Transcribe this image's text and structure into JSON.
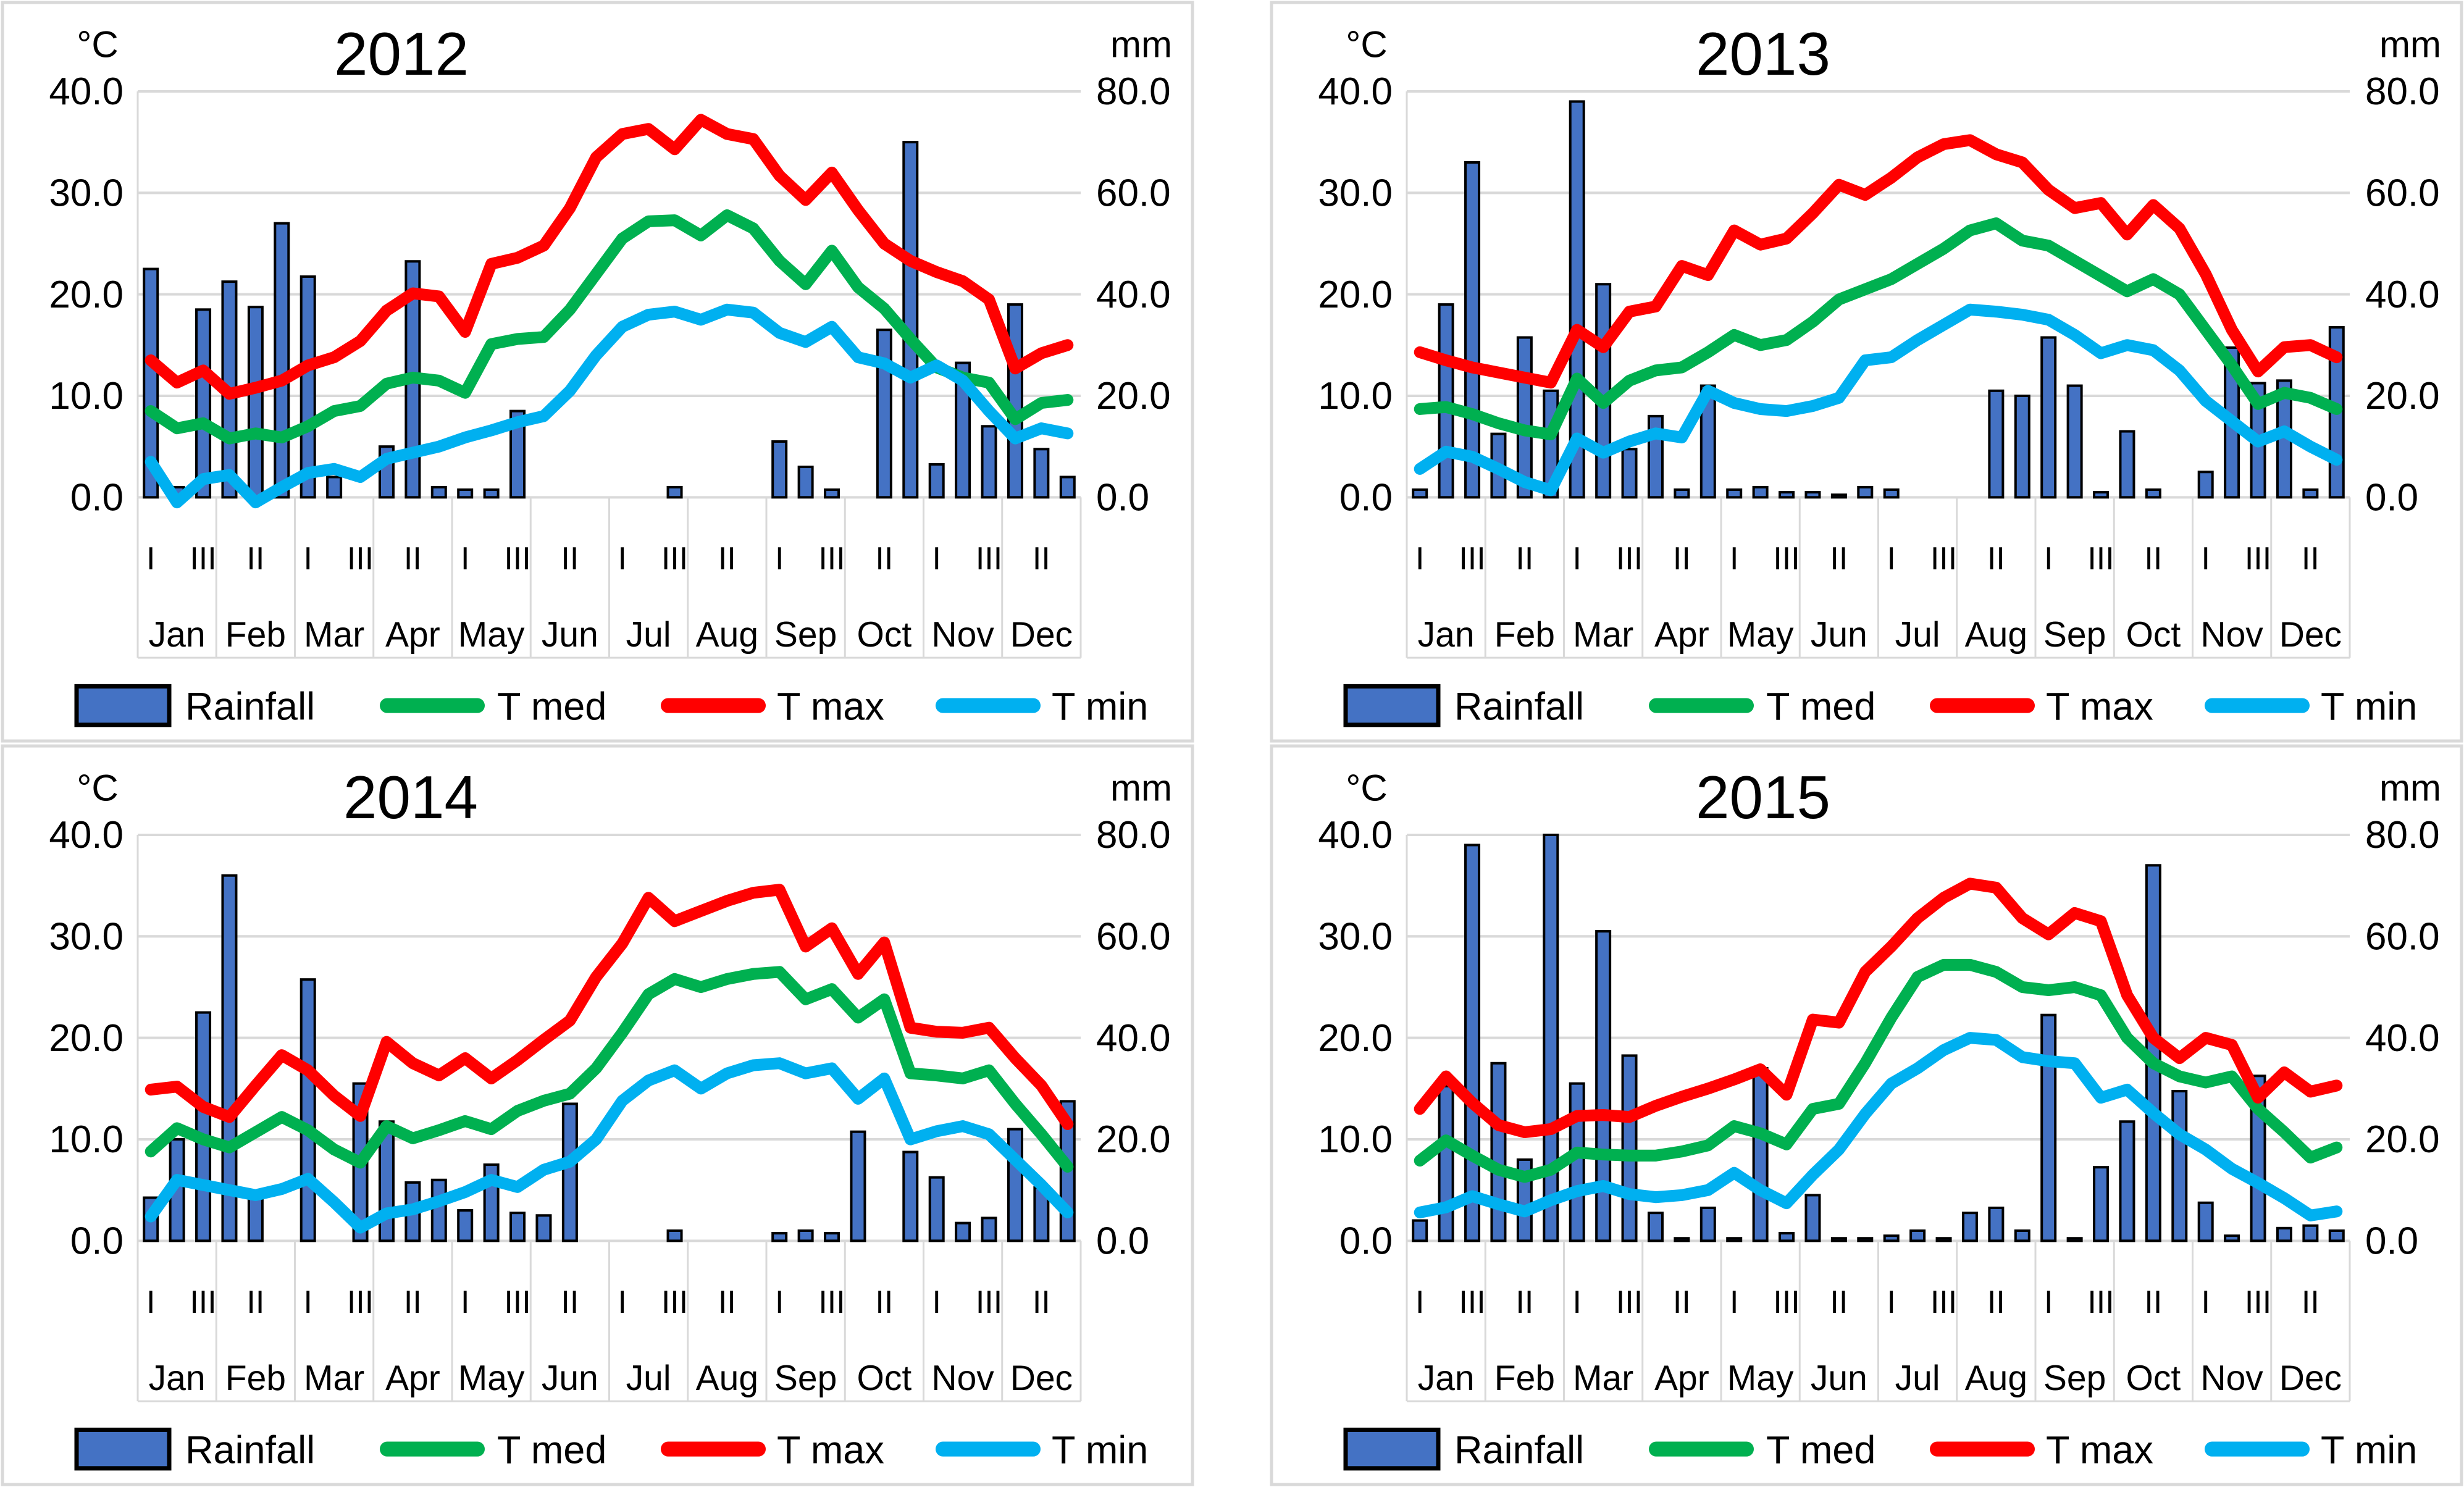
{
  "page": {
    "background": "#ffffff"
  },
  "colors": {
    "rainfall_fill": "#4472C4",
    "rainfall_border": "#000000",
    "t_med": "#00B050",
    "t_max": "#FF0000",
    "t_min": "#00B0F0",
    "gridline": "#D9D9D9",
    "panel_border": "#D9D9D9",
    "text": "#000000"
  },
  "axis": {
    "left_title": "°C",
    "right_title": "mm",
    "left_tick_labels": [
      "40.0",
      "30.0",
      "20.0",
      "10.0",
      "0.0"
    ],
    "left_tick_values": [
      40,
      30,
      20,
      10,
      0
    ],
    "right_tick_labels": [
      "80.0",
      "60.0",
      "40.0",
      "20.0",
      "0.0"
    ],
    "right_tick_values": [
      80,
      60,
      40,
      20,
      0
    ],
    "left_range": [
      0,
      40
    ],
    "right_range": [
      0,
      80
    ],
    "months": [
      "Jan",
      "Feb",
      "Mar",
      "Apr",
      "May",
      "Jun",
      "Jul",
      "Aug",
      "Sep",
      "Oct",
      "Nov",
      "Dec"
    ],
    "decades_per_month": 3,
    "decade_label_cycle": [
      "I",
      "III",
      "II"
    ],
    "grid": "on"
  },
  "legend": {
    "position": "bottom",
    "items": [
      {
        "key": "rainfall",
        "label": "Rainfall",
        "swatch": "bar"
      },
      {
        "key": "t_med",
        "label": "T med",
        "swatch": "line"
      },
      {
        "key": "t_max",
        "label": "T max",
        "swatch": "line"
      },
      {
        "key": "t_min",
        "label": "T min",
        "swatch": "line"
      }
    ]
  },
  "chart_data": [
    {
      "type": "bar",
      "subtype": "combo-bar-lines",
      "title": "2012",
      "xlabel": "",
      "ylabel_left": "°C",
      "ylabel_right": "mm",
      "ylim_left": [
        0,
        40
      ],
      "ylim_right": [
        0,
        80
      ],
      "categories": [
        "Jan-I",
        "Jan-II",
        "Jan-III",
        "Feb-I",
        "Feb-II",
        "Feb-III",
        "Mar-I",
        "Mar-II",
        "Mar-III",
        "Apr-I",
        "Apr-II",
        "Apr-III",
        "May-I",
        "May-II",
        "May-III",
        "Jun-I",
        "Jun-II",
        "Jun-III",
        "Jul-I",
        "Jul-II",
        "Jul-III",
        "Aug-I",
        "Aug-II",
        "Aug-III",
        "Sep-I",
        "Sep-II",
        "Sep-III",
        "Oct-I",
        "Oct-II",
        "Oct-III",
        "Nov-I",
        "Nov-II",
        "Nov-III",
        "Dec-I",
        "Dec-II",
        "Dec-III"
      ],
      "series": [
        {
          "name": "Rainfall",
          "type": "bar",
          "axis": "right",
          "unit": "mm",
          "values": [
            45,
            2,
            37,
            42.5,
            37.5,
            54,
            43.5,
            4,
            0,
            10,
            46.5,
            2,
            1.5,
            1.5,
            17,
            0,
            0,
            0,
            0,
            0,
            2,
            0,
            0,
            0,
            11,
            6,
            1.5,
            0,
            33,
            70,
            6.5,
            26.5,
            14,
            38,
            9.5,
            4
          ]
        },
        {
          "name": "T med",
          "type": "line",
          "axis": "left",
          "unit": "°C",
          "values": [
            8.5,
            6.8,
            7.3,
            5.8,
            6.3,
            5.9,
            7.0,
            8.5,
            9.0,
            11.2,
            11.8,
            11.5,
            10.3,
            15.1,
            15.6,
            15.8,
            18.5,
            22.0,
            25.5,
            27.2,
            27.3,
            25.8,
            27.8,
            26.5,
            23.3,
            21.0,
            24.3,
            20.7,
            18.6,
            15.6,
            12.8,
            11.8,
            11.3,
            7.7,
            9.3,
            9.6
          ]
        },
        {
          "name": "T max",
          "type": "line",
          "axis": "left",
          "unit": "°C",
          "values": [
            13.5,
            11.3,
            12.5,
            10.2,
            10.8,
            11.5,
            13.0,
            13.8,
            15.4,
            18.4,
            20.1,
            19.8,
            16.3,
            23.0,
            23.6,
            24.8,
            28.5,
            33.5,
            35.8,
            36.3,
            34.3,
            37.2,
            35.8,
            35.3,
            31.7,
            29.3,
            32.0,
            28.3,
            25.0,
            23.3,
            22.2,
            21.3,
            19.5,
            12.7,
            14.2,
            15.0
          ]
        },
        {
          "name": "T min",
          "type": "line",
          "axis": "left",
          "unit": "°C",
          "values": [
            3.5,
            -0.5,
            1.8,
            2.2,
            -0.5,
            1.0,
            2.4,
            2.8,
            2.0,
            3.8,
            4.4,
            5.0,
            5.9,
            6.6,
            7.4,
            8.0,
            10.5,
            14.0,
            16.8,
            18.0,
            18.3,
            17.5,
            18.5,
            18.2,
            16.2,
            15.3,
            16.8,
            13.8,
            13.2,
            11.8,
            13.0,
            11.5,
            8.5,
            5.8,
            6.8,
            6.3
          ]
        }
      ]
    },
    {
      "type": "bar",
      "subtype": "combo-bar-lines",
      "title": "2013",
      "xlabel": "",
      "ylabel_left": "°C",
      "ylabel_right": "mm",
      "ylim_left": [
        0,
        40
      ],
      "ylim_right": [
        0,
        80
      ],
      "categories": [
        "Jan-I",
        "Jan-II",
        "Jan-III",
        "Feb-I",
        "Feb-II",
        "Feb-III",
        "Mar-I",
        "Mar-II",
        "Mar-III",
        "Apr-I",
        "Apr-II",
        "Apr-III",
        "May-I",
        "May-II",
        "May-III",
        "Jun-I",
        "Jun-II",
        "Jun-III",
        "Jul-I",
        "Jul-II",
        "Jul-III",
        "Aug-I",
        "Aug-II",
        "Aug-III",
        "Sep-I",
        "Sep-II",
        "Sep-III",
        "Oct-I",
        "Oct-II",
        "Oct-III",
        "Nov-I",
        "Nov-II",
        "Nov-III",
        "Dec-I",
        "Dec-II",
        "Dec-III"
      ],
      "series": [
        {
          "name": "Rainfall",
          "type": "bar",
          "axis": "right",
          "unit": "mm",
          "values": [
            1.5,
            38,
            66,
            12.5,
            31.5,
            21,
            78,
            42,
            9.5,
            16,
            1.5,
            22,
            1.5,
            2,
            1,
            1,
            0.5,
            2,
            1.5,
            0,
            0,
            0,
            21,
            20,
            31.5,
            22,
            1,
            13,
            1.5,
            0,
            5,
            29.5,
            22.5,
            23,
            1.5,
            33.5
          ]
        },
        {
          "name": "T med",
          "type": "line",
          "axis": "left",
          "unit": "°C",
          "values": [
            8.7,
            8.9,
            8.2,
            7.3,
            6.6,
            6.2,
            11.7,
            9.3,
            11.5,
            12.5,
            12.8,
            14.3,
            16.0,
            15.0,
            15.5,
            17.3,
            19.5,
            20.5,
            21.5,
            23.0,
            24.5,
            26.3,
            27.0,
            25.3,
            24.8,
            23.3,
            21.8,
            20.3,
            21.5,
            20.0,
            16.5,
            13.0,
            9.2,
            10.3,
            9.8,
            8.7
          ]
        },
        {
          "name": "T max",
          "type": "line",
          "axis": "left",
          "unit": "°C",
          "values": [
            14.3,
            13.5,
            12.8,
            12.3,
            11.8,
            11.3,
            16.5,
            14.8,
            18.3,
            18.8,
            22.8,
            21.9,
            26.3,
            24.9,
            25.5,
            28.0,
            30.8,
            29.8,
            31.5,
            33.5,
            34.8,
            35.2,
            33.8,
            33.0,
            30.3,
            28.5,
            29.0,
            25.9,
            28.8,
            26.5,
            22.0,
            16.5,
            12.4,
            14.8,
            15.0,
            13.8
          ]
        },
        {
          "name": "T min",
          "type": "line",
          "axis": "left",
          "unit": "°C",
          "values": [
            2.8,
            4.5,
            4.0,
            2.8,
            1.5,
            0.7,
            5.8,
            4.4,
            5.5,
            6.3,
            5.9,
            10.5,
            9.3,
            8.7,
            8.5,
            9.0,
            9.8,
            13.5,
            13.8,
            15.5,
            17.0,
            18.5,
            18.3,
            18.0,
            17.5,
            16.0,
            14.2,
            15.0,
            14.5,
            12.5,
            9.5,
            7.5,
            5.5,
            6.5,
            5.0,
            3.7
          ]
        }
      ]
    },
    {
      "type": "bar",
      "subtype": "combo-bar-lines",
      "title": "2014",
      "xlabel": "",
      "ylabel_left": "°C",
      "ylabel_right": "mm",
      "ylim_left": [
        0,
        40
      ],
      "ylim_right": [
        0,
        80
      ],
      "categories": [
        "Jan-I",
        "Jan-II",
        "Jan-III",
        "Feb-I",
        "Feb-II",
        "Feb-III",
        "Mar-I",
        "Mar-II",
        "Mar-III",
        "Apr-I",
        "Apr-II",
        "Apr-III",
        "May-I",
        "May-II",
        "May-III",
        "Jun-I",
        "Jun-II",
        "Jun-III",
        "Jul-I",
        "Jul-II",
        "Jul-III",
        "Aug-I",
        "Aug-II",
        "Aug-III",
        "Sep-I",
        "Sep-II",
        "Sep-III",
        "Oct-I",
        "Oct-II",
        "Oct-III",
        "Nov-I",
        "Nov-II",
        "Nov-III",
        "Dec-I",
        "Dec-II",
        "Dec-III"
      ],
      "series": [
        {
          "name": "Rainfall",
          "type": "bar",
          "axis": "right",
          "unit": "mm",
          "values": [
            8.5,
            20,
            45,
            72,
            9.5,
            0,
            51.5,
            0,
            31,
            23.5,
            11.5,
            12,
            6,
            15,
            5.5,
            5,
            27,
            0,
            0,
            0,
            2,
            0,
            0,
            0,
            1.5,
            2,
            1.5,
            21.5,
            0,
            17.5,
            12.5,
            3.5,
            4.5,
            22,
            10.5,
            27.5
          ]
        },
        {
          "name": "T med",
          "type": "line",
          "axis": "left",
          "unit": "°C",
          "values": [
            8.8,
            11.1,
            10.0,
            9.2,
            10.7,
            12.2,
            10.9,
            9.0,
            7.7,
            11.3,
            10.1,
            10.9,
            11.8,
            11.0,
            12.8,
            13.8,
            14.5,
            17.0,
            20.5,
            24.3,
            25.8,
            25.0,
            25.8,
            26.3,
            26.5,
            23.8,
            24.8,
            22.0,
            23.8,
            16.5,
            16.3,
            16.0,
            16.8,
            13.5,
            10.5,
            7.3
          ]
        },
        {
          "name": "T max",
          "type": "line",
          "axis": "left",
          "unit": "°C",
          "values": [
            14.9,
            15.2,
            13.2,
            12.2,
            15.3,
            18.3,
            16.8,
            14.3,
            12.3,
            19.6,
            17.5,
            16.3,
            18.0,
            16.0,
            17.8,
            19.8,
            21.7,
            26.0,
            29.3,
            33.8,
            31.5,
            32.5,
            33.5,
            34.3,
            34.6,
            29.0,
            30.8,
            26.3,
            29.4,
            21.0,
            20.6,
            20.5,
            21.0,
            18.0,
            15.3,
            11.5
          ]
        },
        {
          "name": "T min",
          "type": "line",
          "axis": "left",
          "unit": "°C",
          "values": [
            2.4,
            6.0,
            5.5,
            5.0,
            4.5,
            5.1,
            6.1,
            3.8,
            1.3,
            2.7,
            3.1,
            3.9,
            4.8,
            6.0,
            5.3,
            7.0,
            7.8,
            10.0,
            13.8,
            15.8,
            16.8,
            15.0,
            16.5,
            17.3,
            17.5,
            16.5,
            17.0,
            14.0,
            16.0,
            10.0,
            10.8,
            11.3,
            10.5,
            8.0,
            5.5,
            2.8
          ]
        }
      ]
    },
    {
      "type": "bar",
      "subtype": "combo-bar-lines",
      "title": "2015",
      "xlabel": "",
      "ylabel_left": "°C",
      "ylabel_right": "mm",
      "ylim_left": [
        0,
        40
      ],
      "ylim_right": [
        0,
        80
      ],
      "categories": [
        "Jan-I",
        "Jan-II",
        "Jan-III",
        "Feb-I",
        "Feb-II",
        "Feb-III",
        "Mar-I",
        "Mar-II",
        "Mar-III",
        "Apr-I",
        "Apr-II",
        "Apr-III",
        "May-I",
        "May-II",
        "May-III",
        "Jun-I",
        "Jun-II",
        "Jun-III",
        "Jul-I",
        "Jul-II",
        "Jul-III",
        "Aug-I",
        "Aug-II",
        "Aug-III",
        "Sep-I",
        "Sep-II",
        "Sep-III",
        "Oct-I",
        "Oct-II",
        "Oct-III",
        "Nov-I",
        "Nov-II",
        "Nov-III",
        "Dec-I",
        "Dec-II",
        "Dec-III"
      ],
      "series": [
        {
          "name": "Rainfall",
          "type": "bar",
          "axis": "right",
          "unit": "mm",
          "values": [
            4,
            30.5,
            78,
            35,
            16,
            80,
            31,
            61,
            36.5,
            5.5,
            0.5,
            6.5,
            0.5,
            34,
            1.5,
            9,
            0.5,
            0.5,
            1,
            2,
            0.5,
            5.5,
            6.5,
            2,
            44.5,
            0.5,
            14.5,
            23.5,
            74,
            29.5,
            7.5,
            1,
            32.5,
            2.5,
            3,
            2
          ]
        },
        {
          "name": "T med",
          "type": "line",
          "axis": "left",
          "unit": "°C",
          "values": [
            7.9,
            9.9,
            8.4,
            7.0,
            6.3,
            7.0,
            8.7,
            8.5,
            8.4,
            8.4,
            8.8,
            9.4,
            11.3,
            10.6,
            9.5,
            13.0,
            13.5,
            17.5,
            22.0,
            26.0,
            27.2,
            27.2,
            26.5,
            25.0,
            24.7,
            25.0,
            24.2,
            20.0,
            17.5,
            16.2,
            15.6,
            16.2,
            13.0,
            10.7,
            8.2,
            9.2
          ]
        },
        {
          "name": "T max",
          "type": "line",
          "axis": "left",
          "unit": "°C",
          "values": [
            13.0,
            16.2,
            13.6,
            11.4,
            10.7,
            11.0,
            12.3,
            12.4,
            12.2,
            13.3,
            14.2,
            15.0,
            15.9,
            16.9,
            14.4,
            21.8,
            21.5,
            26.5,
            29.0,
            31.8,
            33.8,
            35.2,
            34.8,
            31.8,
            30.2,
            32.3,
            31.5,
            24.2,
            20.0,
            18.0,
            20.0,
            19.3,
            14.1,
            16.6,
            14.7,
            15.3
          ]
        },
        {
          "name": "T min",
          "type": "line",
          "axis": "left",
          "unit": "°C",
          "values": [
            2.8,
            3.3,
            4.4,
            3.6,
            2.9,
            4.0,
            4.9,
            5.4,
            4.6,
            4.3,
            4.5,
            5.0,
            6.7,
            5.0,
            3.7,
            6.5,
            9.0,
            12.5,
            15.5,
            17.0,
            18.8,
            20.0,
            19.8,
            18.1,
            17.7,
            17.5,
            14.1,
            14.9,
            12.6,
            10.5,
            9.0,
            7.1,
            5.7,
            4.2,
            2.5,
            2.9
          ]
        }
      ]
    }
  ]
}
